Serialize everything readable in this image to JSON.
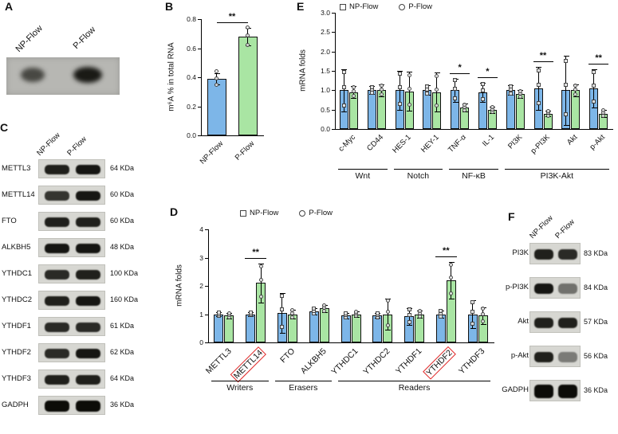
{
  "colors": {
    "np_bar": "#7db6e8",
    "p_bar": "#a9e5a3",
    "red_box": "#e02525"
  },
  "panels": {
    "A": {
      "label": "A",
      "lanes": [
        "NP-Flow",
        "P-Flow"
      ]
    },
    "B": {
      "label": "B"
    },
    "C": {
      "label": "C",
      "lanes": [
        "NP-Flow",
        "P-Flow"
      ],
      "rows": [
        {
          "protein": "METTL3",
          "kda": "64 KDa",
          "bands": [
            0.9,
            0.95
          ]
        },
        {
          "protein": "METTL14",
          "kda": "60 KDa",
          "bands": [
            0.8,
            0.95
          ]
        },
        {
          "protein": "FTO",
          "kda": "60 KDa",
          "bands": [
            0.9,
            0.9
          ]
        },
        {
          "protein": "ALKBH5",
          "kda": "48 KDa",
          "bands": [
            0.95,
            0.95
          ]
        },
        {
          "protein": "YTHDC1",
          "kda": "100 KDa",
          "bands": [
            0.85,
            0.9
          ]
        },
        {
          "protein": "YTHDC2",
          "kda": "160 KDa",
          "bands": [
            0.9,
            0.95
          ]
        },
        {
          "protein": "YTHDF1",
          "kda": "61 KDa",
          "bands": [
            0.85,
            0.85
          ]
        },
        {
          "protein": "YTHDF2",
          "kda": "62 KDa",
          "bands": [
            0.85,
            0.95
          ]
        },
        {
          "protein": "YTHDF3",
          "kda": "64 KDa",
          "bands": [
            0.9,
            0.9
          ]
        },
        {
          "protein": "GADPH",
          "kda": "36 KDa",
          "bands": [
            1.0,
            1.0
          ]
        }
      ]
    },
    "D": {
      "label": "D"
    },
    "E": {
      "label": "E"
    },
    "F": {
      "label": "F",
      "lanes": [
        "NP-Flow",
        "P-Flow"
      ],
      "rows": [
        {
          "protein": "PI3K",
          "kda": "83 KDa",
          "bands": [
            0.9,
            0.85
          ]
        },
        {
          "protein": "p-PI3K",
          "kda": "84 KDa",
          "bands": [
            0.95,
            0.5
          ]
        },
        {
          "protein": "Akt",
          "kda": "57 KDa",
          "bands": [
            0.9,
            0.9
          ]
        },
        {
          "protein": "p-Akt",
          "kda": "56 KDa",
          "bands": [
            0.9,
            0.45
          ]
        },
        {
          "protein": "GADPH",
          "kda": "36 KDa",
          "bands": [
            1.0,
            1.0
          ]
        }
      ]
    }
  },
  "chart_data": [
    {
      "id": "chartB",
      "type": "bar",
      "panel": "B",
      "ylabel": "m⁶A % in total RNA",
      "ylim": [
        0,
        0.8
      ],
      "yticks": [
        0,
        0.2,
        0.4,
        0.6,
        0.8
      ],
      "ydec": 1,
      "categories": [
        "NP-Flow",
        "P-Flow"
      ],
      "values": [
        0.39,
        0.68
      ],
      "errors": [
        0.04,
        0.06
      ],
      "points": [
        [
          0.35,
          0.39,
          0.44
        ],
        [
          0.62,
          0.69,
          0.74
        ]
      ],
      "bar_colors": [
        "np",
        "p"
      ],
      "significance": [
        {
          "between": [
            0,
            1
          ],
          "label": "**"
        }
      ]
    },
    {
      "id": "chartD",
      "type": "grouped-bar",
      "panel": "D",
      "ylabel": "mRNA folds",
      "ylim": [
        0,
        4
      ],
      "yticks": [
        0,
        1,
        2,
        3,
        4
      ],
      "ydec": 0,
      "categories": [
        "METTL3",
        "METTL14",
        "FTO",
        "ALKBH5",
        "YTHDC1",
        "YTHDC2",
        "YTHDF1",
        "YTHDF2",
        "YTHDF3"
      ],
      "series": [
        {
          "name": "NP-Flow",
          "marker": "square",
          "color": "np",
          "values": [
            1.0,
            1.0,
            1.05,
            1.1,
            0.95,
            0.95,
            0.92,
            1.0,
            1.0
          ],
          "errors": [
            0.08,
            0.06,
            0.7,
            0.1,
            0.1,
            0.08,
            0.3,
            0.12,
            0.5
          ]
        },
        {
          "name": "P-Flow",
          "marker": "circle",
          "color": "p",
          "values": [
            0.95,
            2.1,
            1.0,
            1.2,
            1.0,
            1.0,
            1.0,
            2.2,
            0.95
          ],
          "errors": [
            0.1,
            0.7,
            0.15,
            0.12,
            0.1,
            0.55,
            0.12,
            0.65,
            0.3
          ]
        }
      ],
      "significance": [
        {
          "cat": 1,
          "label": "**"
        },
        {
          "cat": 7,
          "label": "**"
        }
      ],
      "highlighted_categories": [
        1,
        7
      ],
      "groups": [
        {
          "label": "Writers",
          "span": [
            0,
            1
          ]
        },
        {
          "label": "Erasers",
          "span": [
            2,
            3
          ]
        },
        {
          "label": "Readers",
          "span": [
            4,
            8
          ]
        }
      ]
    },
    {
      "id": "chartE",
      "type": "grouped-bar",
      "panel": "E",
      "ylabel": "mRNA folds",
      "ylim": [
        0,
        3
      ],
      "yticks": [
        0,
        0.5,
        1,
        1.5,
        2,
        2.5,
        3
      ],
      "ydec": 1,
      "categories": [
        "c-Myc",
        "CD44",
        "HES-1",
        "HEY-1",
        "TNF-α",
        "IL-1",
        "PI3K",
        "p-PI3K",
        "Akt",
        "p-Akt"
      ],
      "series": [
        {
          "name": "NP-Flow",
          "marker": "square",
          "color": "np",
          "values": [
            1.0,
            1.0,
            1.0,
            1.0,
            1.0,
            0.95,
            1.0,
            1.05,
            1.0,
            1.05
          ],
          "errors": [
            0.55,
            0.1,
            0.5,
            0.12,
            0.3,
            0.25,
            0.12,
            0.55,
            0.9,
            0.5
          ]
        },
        {
          "name": "P-Flow",
          "marker": "circle",
          "color": "p",
          "values": [
            0.95,
            1.0,
            0.97,
            0.95,
            0.55,
            0.5,
            0.9,
            0.4,
            1.0,
            0.4
          ],
          "errors": [
            0.15,
            0.15,
            0.5,
            0.5,
            0.1,
            0.08,
            0.1,
            0.08,
            0.15,
            0.1
          ]
        }
      ],
      "significance": [
        {
          "cat": 4,
          "label": "*"
        },
        {
          "cat": 5,
          "label": "*"
        },
        {
          "cat": 7,
          "label": "**"
        },
        {
          "cat": 9,
          "label": "**"
        }
      ],
      "groups": [
        {
          "label": "Wnt",
          "span": [
            0,
            1
          ]
        },
        {
          "label": "Notch",
          "span": [
            2,
            3
          ]
        },
        {
          "label": "NF-κB",
          "span": [
            4,
            5
          ]
        },
        {
          "label": "PI3K-Akt",
          "span": [
            6,
            9
          ]
        }
      ]
    }
  ]
}
